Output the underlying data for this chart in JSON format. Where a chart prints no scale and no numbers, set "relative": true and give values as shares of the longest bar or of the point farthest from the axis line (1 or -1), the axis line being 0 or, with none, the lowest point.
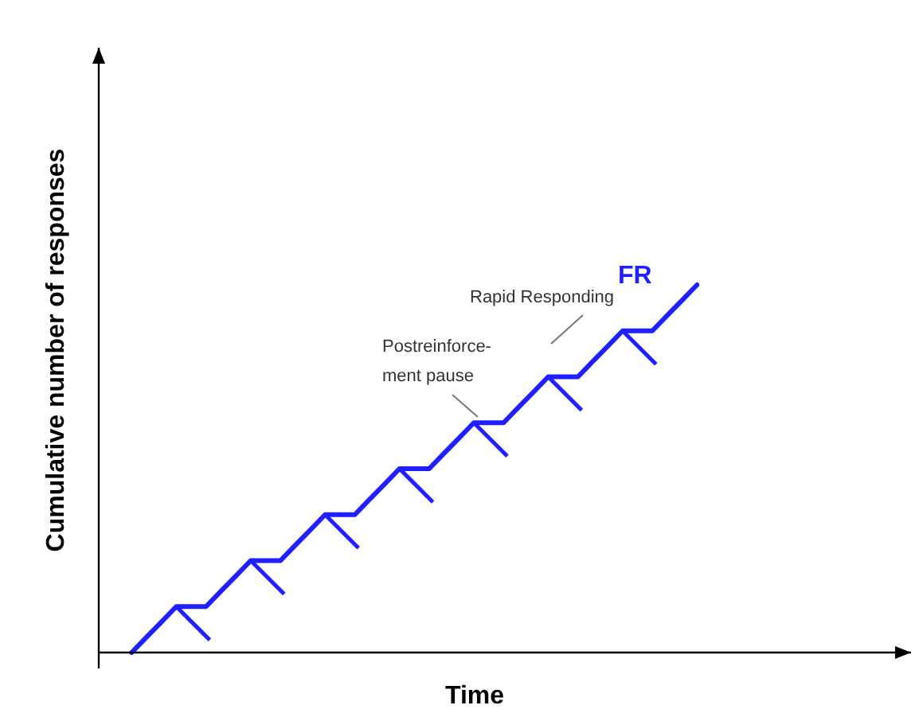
{
  "chart_data": {
    "type": "line",
    "relative": true,
    "xlabel": "Time",
    "ylabel": "Cumulative number of responses",
    "categories": [
      null,
      null,
      null,
      null,
      null,
      null,
      null,
      null,
      null,
      null,
      null,
      null,
      null,
      null,
      null,
      null,
      null,
      null,
      null,
      null,
      null,
      null,
      null,
      null,
      null,
      null,
      null,
      null,
      null,
      null,
      null,
      null,
      null,
      null,
      null,
      null,
      null,
      null,
      null,
      null,
      null,
      null,
      null,
      null,
      null,
      null,
      null,
      null,
      null,
      null,
      null,
      null,
      null,
      null
    ],
    "series": [
      {
        "color": "#1f1fff",
        "values": [
          null,
          null,
          0,
          0.042,
          0.083,
          0.125,
          0.125,
          0.125,
          0.167,
          0.208,
          0.25,
          0.25,
          0.25,
          0.292,
          0.333,
          0.375,
          0.375,
          0.375,
          0.417,
          0.458,
          0.5,
          0.5,
          0.5,
          0.542,
          0.583,
          0.625,
          0.625,
          0.625,
          0.667,
          0.708,
          0.75,
          0.75,
          0.75,
          0.792,
          0.833,
          0.875,
          0.875,
          0.875,
          0.917,
          0.958,
          1,
          null,
          null,
          null,
          null,
          null,
          null,
          null,
          null,
          null,
          null,
          null,
          null,
          null
        ]
      }
    ],
    "annotations": [
      "FR",
      "Rapid Responding",
      "Postreinforce-\nment pause"
    ]
  }
}
